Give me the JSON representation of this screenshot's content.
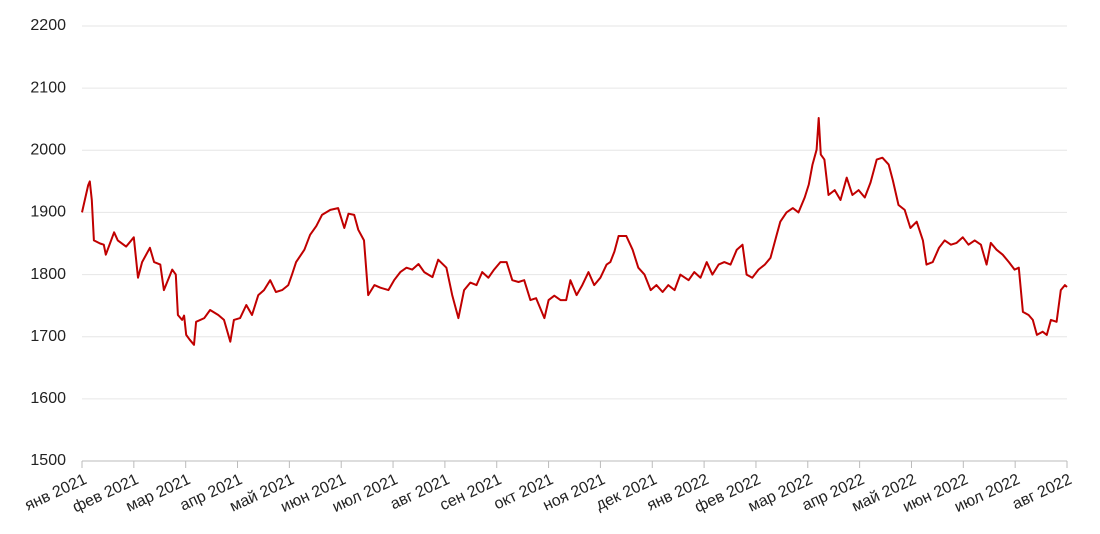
{
  "chart_data": {
    "type": "line",
    "color": "#c00000",
    "grid": true,
    "x": [
      0,
      0.12,
      0.15,
      0.19,
      0.23,
      0.35,
      0.42,
      0.46,
      0.62,
      0.69,
      0.85,
      1.0,
      1.08,
      1.16,
      1.31,
      1.39,
      1.51,
      1.58,
      1.74,
      1.81,
      1.85,
      1.93,
      1.97,
      2.01,
      2.08,
      2.16,
      2.2,
      2.36,
      2.47,
      2.63,
      2.74,
      2.86,
      2.93,
      3.05,
      3.17,
      3.28,
      3.4,
      3.51,
      3.63,
      3.74,
      3.86,
      3.98,
      4.05,
      4.13,
      4.29,
      4.4,
      4.52,
      4.63,
      4.79,
      4.94,
      5.06,
      5.14,
      5.25,
      5.33,
      5.44,
      5.52,
      5.64,
      5.75,
      5.91,
      6.02,
      6.14,
      6.26,
      6.37,
      6.49,
      6.6,
      6.76,
      6.87,
      7.03,
      7.14,
      7.26,
      7.37,
      7.49,
      7.61,
      7.72,
      7.84,
      7.95,
      8.07,
      8.19,
      8.3,
      8.42,
      8.53,
      8.65,
      8.76,
      8.92,
      9.0,
      9.11,
      9.23,
      9.34,
      9.42,
      9.54,
      9.65,
      9.77,
      9.88,
      10.0,
      10.12,
      10.19,
      10.27,
      10.35,
      10.5,
      10.62,
      10.73,
      10.85,
      10.97,
      11.08,
      11.2,
      11.31,
      11.43,
      11.54,
      11.7,
      11.81,
      11.93,
      12.05,
      12.16,
      12.28,
      12.39,
      12.51,
      12.63,
      12.74,
      12.82,
      12.93,
      13.05,
      13.17,
      13.28,
      13.4,
      13.47,
      13.59,
      13.71,
      13.82,
      13.94,
      14.02,
      14.09,
      14.17,
      14.21,
      14.25,
      14.32,
      14.4,
      14.52,
      14.63,
      14.75,
      14.86,
      14.98,
      15.1,
      15.21,
      15.33,
      15.44,
      15.56,
      15.64,
      15.75,
      15.87,
      15.98,
      16.1,
      16.22,
      16.29,
      16.41,
      16.53,
      16.64,
      16.76,
      16.87,
      16.99,
      17.1,
      17.22,
      17.34,
      17.45,
      17.53,
      17.64,
      17.76,
      17.88,
      17.99,
      18.07,
      18.15,
      18.26,
      18.34,
      18.42,
      18.53,
      18.61,
      18.69,
      18.8,
      18.88,
      18.96,
      19.0
    ],
    "values": [
      1900,
      1944,
      1950,
      1920,
      1855,
      1850,
      1848,
      1832,
      1868,
      1855,
      1845,
      1860,
      1795,
      1820,
      1843,
      1820,
      1816,
      1775,
      1808,
      1800,
      1735,
      1727,
      1734,
      1703,
      1695,
      1687,
      1724,
      1730,
      1743,
      1735,
      1727,
      1692,
      1727,
      1730,
      1751,
      1735,
      1767,
      1775,
      1791,
      1772,
      1775,
      1783,
      1800,
      1820,
      1840,
      1864,
      1878,
      1896,
      1904,
      1907,
      1875,
      1898,
      1896,
      1872,
      1855,
      1767,
      1783,
      1779,
      1775,
      1791,
      1804,
      1811,
      1808,
      1817,
      1804,
      1796,
      1824,
      1811,
      1767,
      1730,
      1775,
      1787,
      1783,
      1804,
      1795,
      1808,
      1820,
      1820,
      1791,
      1788,
      1791,
      1759,
      1762,
      1730,
      1759,
      1766,
      1759,
      1759,
      1791,
      1767,
      1783,
      1804,
      1783,
      1795,
      1816,
      1820,
      1837,
      1862,
      1862,
      1840,
      1811,
      1800,
      1775,
      1783,
      1772,
      1783,
      1775,
      1800,
      1791,
      1804,
      1795,
      1820,
      1800,
      1816,
      1820,
      1816,
      1840,
      1848,
      1800,
      1795,
      1808,
      1816,
      1827,
      1864,
      1885,
      1900,
      1907,
      1900,
      1924,
      1945,
      1977,
      2001,
      2052,
      1993,
      1985,
      1928,
      1936,
      1920,
      1956,
      1928,
      1936,
      1924,
      1948,
      1985,
      1988,
      1977,
      1952,
      1912,
      1904,
      1875,
      1885,
      1855,
      1816,
      1820,
      1843,
      1855,
      1848,
      1851,
      1860,
      1848,
      1855,
      1848,
      1816,
      1851,
      1840,
      1832,
      1820,
      1808,
      1811,
      1740,
      1735,
      1727,
      1703,
      1708,
      1703,
      1727,
      1724,
      1775,
      1783,
      1780
    ],
    "xlim": [
      0,
      19
    ],
    "xticks": [
      {
        "value": 0,
        "label": "янв 2021"
      },
      {
        "value": 1,
        "label": "фев 2021"
      },
      {
        "value": 2,
        "label": "мар 2021"
      },
      {
        "value": 3,
        "label": "апр 2021"
      },
      {
        "value": 4,
        "label": "май 2021"
      },
      {
        "value": 5,
        "label": "июн 2021"
      },
      {
        "value": 6,
        "label": "июл 2021"
      },
      {
        "value": 7,
        "label": "авг 2021"
      },
      {
        "value": 8,
        "label": "сен 2021"
      },
      {
        "value": 9,
        "label": "окт 2021"
      },
      {
        "value": 10,
        "label": "ноя 2021"
      },
      {
        "value": 11,
        "label": "дек 2021"
      },
      {
        "value": 12,
        "label": "янв 2022"
      },
      {
        "value": 13,
        "label": "фев 2022"
      },
      {
        "value": 14,
        "label": "мар 2022"
      },
      {
        "value": 15,
        "label": "апр 2022"
      },
      {
        "value": 16,
        "label": "май 2022"
      },
      {
        "value": 17,
        "label": "июн 2022"
      },
      {
        "value": 18,
        "label": "июл 2022"
      },
      {
        "value": 19,
        "label": "авг 2022"
      }
    ],
    "ylim": [
      1500,
      2200
    ],
    "yticks": [
      1500,
      1600,
      1700,
      1800,
      1900,
      2000,
      2100,
      2200
    ]
  }
}
